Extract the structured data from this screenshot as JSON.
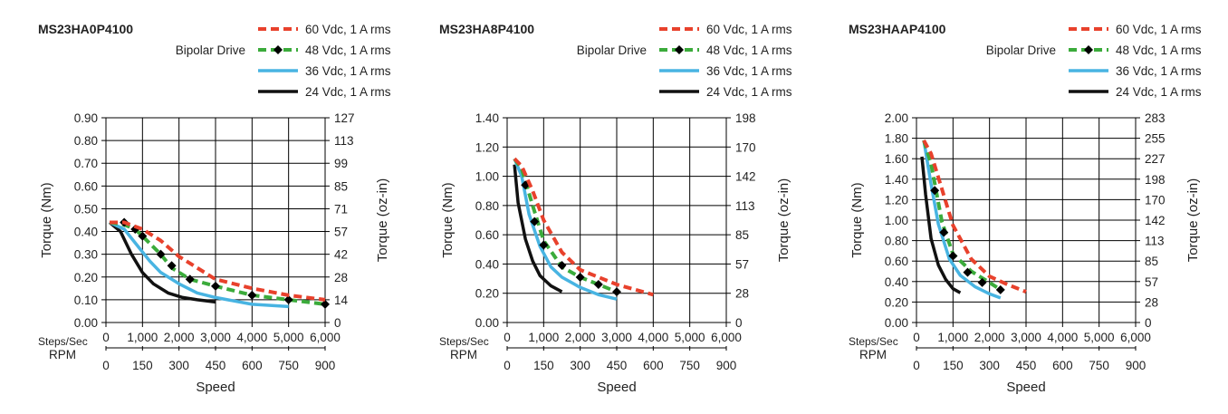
{
  "chart_data": [
    {
      "type": "line",
      "title": "MS23HA0P4100",
      "drive_label": "Bipolar Drive",
      "ylabel_left": "Torque (Nm)",
      "ylabel_right": "Torque (oz-in)",
      "xlabel": "Speed",
      "x_row1_label": "Steps/Sec",
      "x_row2_label": "RPM",
      "ylim": [
        0,
        0.9
      ],
      "xlim": [
        0,
        6000
      ],
      "y_ticks": [
        "0.00",
        "0.10",
        "0.20",
        "0.30",
        "0.40",
        "0.50",
        "0.60",
        "0.70",
        "0.80",
        "0.90"
      ],
      "y_right_ticks": [
        "0",
        "14",
        "28",
        "42",
        "57",
        "71",
        "85",
        "99",
        "113",
        "127"
      ],
      "x_ticks_steps": [
        "0",
        "1,000",
        "2,000",
        "3,000",
        "4,000",
        "5,000",
        "6,000"
      ],
      "x_ticks_rpm": [
        "0",
        "150",
        "300",
        "450",
        "600",
        "750",
        "900"
      ],
      "grid": true,
      "legend_position": "top-right",
      "series": [
        {
          "name": "60 Vdc, 1 A rms",
          "color": "#e8412c",
          "style": "dashed",
          "markers": false,
          "x": [
            100,
            500,
            1000,
            1500,
            2000,
            2500,
            3000,
            4000,
            5000,
            6000
          ],
          "y": [
            0.44,
            0.44,
            0.41,
            0.36,
            0.29,
            0.24,
            0.19,
            0.15,
            0.12,
            0.1
          ]
        },
        {
          "name": "48 Vdc, 1 A rms",
          "color": "#3bab3b",
          "style": "dashed",
          "markers": true,
          "x": [
            100,
            500,
            800,
            1000,
            1500,
            1800,
            2300,
            3000,
            4000,
            5000,
            6000
          ],
          "y": [
            0.44,
            0.43,
            0.41,
            0.38,
            0.3,
            0.24,
            0.19,
            0.16,
            0.12,
            0.1,
            0.08
          ],
          "marker_x": [
            500,
            800,
            1000,
            1500,
            1800,
            2300,
            3000,
            4000,
            5000,
            6000
          ],
          "marker_y": [
            0.44,
            0.41,
            0.38,
            0.3,
            0.25,
            0.19,
            0.16,
            0.12,
            0.1,
            0.08
          ]
        },
        {
          "name": "36 Vdc, 1 A rms",
          "color": "#48b4e2",
          "style": "solid",
          "markers": false,
          "x": [
            100,
            500,
            900,
            1200,
            1500,
            2000,
            2500,
            3000,
            4000,
            5000
          ],
          "y": [
            0.44,
            0.41,
            0.33,
            0.27,
            0.22,
            0.17,
            0.13,
            0.11,
            0.08,
            0.07
          ]
        },
        {
          "name": "24 Vdc, 1 A rms",
          "color": "#111111",
          "style": "solid",
          "markers": false,
          "x": [
            100,
            400,
            700,
            1000,
            1300,
            1700,
            2100,
            2500,
            3000
          ],
          "y": [
            0.44,
            0.4,
            0.3,
            0.22,
            0.17,
            0.13,
            0.11,
            0.1,
            0.09
          ]
        }
      ]
    },
    {
      "type": "line",
      "title": "MS23HA8P4100",
      "drive_label": "Bipolar Drive",
      "ylabel_left": "Torque (Nm)",
      "ylabel_right": "Torque (oz-in)",
      "xlabel": "Speed",
      "x_row1_label": "Steps/Sec",
      "x_row2_label": "RPM",
      "ylim": [
        0,
        1.4
      ],
      "xlim": [
        0,
        6000
      ],
      "y_ticks": [
        "0.00",
        "0.20",
        "0.40",
        "0.60",
        "0.80",
        "1.00",
        "1.20",
        "1.40"
      ],
      "y_right_ticks": [
        "0",
        "28",
        "57",
        "85",
        "113",
        "142",
        "170",
        "198"
      ],
      "x_ticks_steps": [
        "0",
        "1,000",
        "2,000",
        "3,000",
        "4,000",
        "5,000",
        "6,000"
      ],
      "x_ticks_rpm": [
        "0",
        "150",
        "300",
        "450",
        "600",
        "750",
        "900"
      ],
      "grid": true,
      "legend_position": "top-right",
      "series": [
        {
          "name": "60 Vdc, 1 A rms",
          "color": "#e8412c",
          "style": "dashed",
          "markers": false,
          "x": [
            200,
            400,
            700,
            1000,
            1500,
            2000,
            3000,
            4000
          ],
          "y": [
            1.12,
            1.07,
            0.9,
            0.7,
            0.48,
            0.36,
            0.26,
            0.19
          ]
        },
        {
          "name": "48 Vdc, 1 A rms",
          "color": "#3bab3b",
          "style": "dashed",
          "markers": true,
          "x": [
            200,
            400,
            700,
            1000,
            1500,
            2000,
            2500,
            3000
          ],
          "y": [
            1.12,
            1.05,
            0.8,
            0.56,
            0.38,
            0.31,
            0.26,
            0.21
          ],
          "marker_x": [
            500,
            750,
            1000,
            1500,
            2000,
            2500,
            3000
          ],
          "marker_y": [
            0.94,
            0.69,
            0.53,
            0.39,
            0.31,
            0.26,
            0.21
          ]
        },
        {
          "name": "36 Vdc, 1 A rms",
          "color": "#48b4e2",
          "style": "solid",
          "markers": false,
          "x": [
            200,
            400,
            600,
            900,
            1200,
            1500,
            2000,
            2500,
            3000
          ],
          "y": [
            1.12,
            1.0,
            0.74,
            0.52,
            0.38,
            0.31,
            0.24,
            0.19,
            0.16
          ]
        },
        {
          "name": "24 Vdc, 1 A rms",
          "color": "#111111",
          "style": "solid",
          "markers": false,
          "x": [
            200,
            300,
            500,
            700,
            900,
            1200,
            1500
          ],
          "y": [
            1.08,
            0.82,
            0.57,
            0.42,
            0.32,
            0.25,
            0.21
          ]
        }
      ]
    },
    {
      "type": "line",
      "title": "MS23HAAP4100",
      "drive_label": "Bipolar Drive",
      "ylabel_left": "Torque (Nm)",
      "ylabel_right": "Torque (oz-in)",
      "xlabel": "Speed",
      "x_row1_label": "Steps/Sec",
      "x_row2_label": "RPM",
      "ylim": [
        0,
        2.0
      ],
      "xlim": [
        0,
        6000
      ],
      "y_ticks": [
        "0.00",
        "0.20",
        "0.40",
        "0.60",
        "0.80",
        "1.00",
        "1.20",
        "1.40",
        "1.60",
        "1.80",
        "2.00"
      ],
      "y_right_ticks": [
        "0",
        "28",
        "57",
        "85",
        "113",
        "142",
        "170",
        "198",
        "227",
        "255",
        "283"
      ],
      "x_ticks_steps": [
        "0",
        "1,000",
        "2,000",
        "3,000",
        "4,000",
        "5,000",
        "6,000"
      ],
      "x_ticks_rpm": [
        "0",
        "150",
        "300",
        "450",
        "600",
        "750",
        "900"
      ],
      "grid": true,
      "legend_position": "top-right",
      "series": [
        {
          "name": "60 Vdc, 1 A rms",
          "color": "#e8412c",
          "style": "dashed",
          "markers": false,
          "x": [
            200,
            400,
            700,
            1000,
            1500,
            2000,
            2500,
            3000
          ],
          "y": [
            1.78,
            1.65,
            1.3,
            0.95,
            0.62,
            0.45,
            0.37,
            0.3
          ]
        },
        {
          "name": "48 Vdc, 1 A rms",
          "color": "#3bab3b",
          "style": "dashed",
          "markers": true,
          "x": [
            200,
            400,
            700,
            1000,
            1500,
            2000,
            2300
          ],
          "y": [
            1.78,
            1.55,
            0.98,
            0.67,
            0.5,
            0.39,
            0.32
          ],
          "marker_x": [
            500,
            750,
            1000,
            1400,
            1800,
            2300
          ],
          "marker_y": [
            1.29,
            0.88,
            0.65,
            0.49,
            0.39,
            0.32
          ]
        },
        {
          "name": "36 Vdc, 1 A rms",
          "color": "#48b4e2",
          "style": "solid",
          "markers": false,
          "x": [
            200,
            400,
            600,
            900,
            1200,
            1600,
            2000,
            2300
          ],
          "y": [
            1.78,
            1.35,
            0.96,
            0.62,
            0.46,
            0.35,
            0.28,
            0.24
          ]
        },
        {
          "name": "24 Vdc, 1 A rms",
          "color": "#111111",
          "style": "solid",
          "markers": false,
          "x": [
            150,
            250,
            400,
            600,
            800,
            1000,
            1200
          ],
          "y": [
            1.62,
            1.25,
            0.82,
            0.56,
            0.42,
            0.33,
            0.29
          ]
        }
      ]
    }
  ]
}
